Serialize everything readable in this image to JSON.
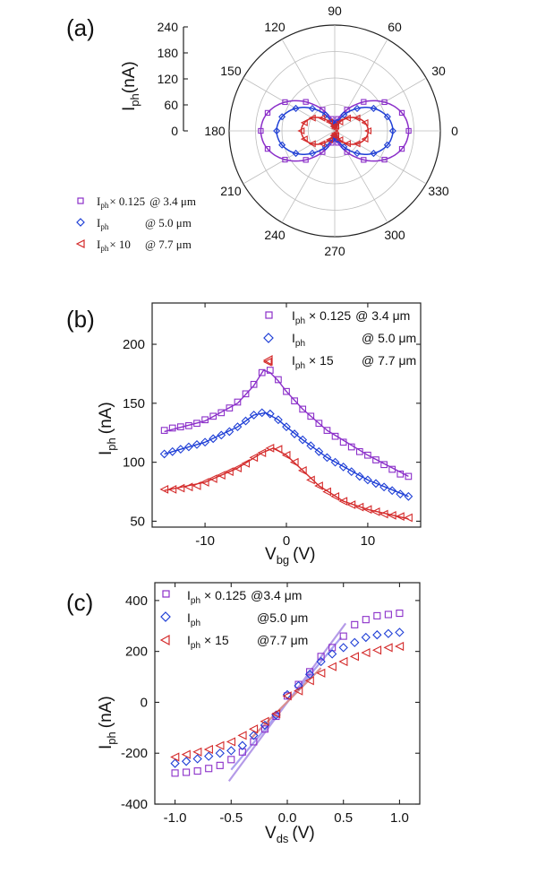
{
  "chart_data": [
    {
      "panel": "(a)",
      "type": "polar-scatter",
      "radial_axis": {
        "label_main": "I",
        "label_sub": "ph",
        "label_unit": "(nA)",
        "range": [
          0,
          240
        ],
        "ticks": [
          "0",
          "60",
          "120",
          "180",
          "240"
        ]
      },
      "angle_ticks": [
        "0",
        "30",
        "60",
        "90",
        "120",
        "150",
        "180",
        "210",
        "240",
        "270",
        "300",
        "330"
      ],
      "series": [
        {
          "legend_main": "I",
          "legend_sub": "ph",
          "legend_factor": "× 0.125",
          "legend_wl": "@ 3.4 μm",
          "color": "#8b2fc9",
          "marker": "square",
          "amp": 150,
          "base": 18
        },
        {
          "legend_main": "I",
          "legend_sub": "ph",
          "legend_factor": "",
          "legend_wl": "@ 5.0 μm",
          "color": "#1f3fd6",
          "marker": "diamond",
          "amp": 120,
          "base": 12
        },
        {
          "legend_main": "I",
          "legend_sub": "ph",
          "legend_factor": "× 10",
          "legend_wl": "@ 7.7 μm",
          "color": "#d42a2a",
          "marker": "triangle-left",
          "amp": 70,
          "base": 6
        }
      ]
    },
    {
      "panel": "(b)",
      "type": "scatter",
      "xlabel_main": "V",
      "xlabel_sub": "bg",
      "xlabel_unit": "(V)",
      "ylabel_main": "I",
      "ylabel_sub": "ph",
      "ylabel_unit": "(nA)",
      "xlim": [
        -16.5,
        16.5
      ],
      "ylim": [
        45,
        235
      ],
      "xticks": [
        -10,
        0,
        10
      ],
      "yticks": [
        50,
        100,
        150,
        200
      ],
      "series": [
        {
          "legend_main": "I",
          "legend_sub": "ph",
          "legend_factor": "× 0.125",
          "legend_wl": "@ 3.4 μm",
          "color": "#8b2fc9",
          "marker": "square",
          "x": [
            -15,
            -14,
            -13,
            -12,
            -11,
            -10,
            -9,
            -8,
            -7,
            -6,
            -5,
            -4,
            -3,
            -2,
            -1,
            0,
            1,
            2,
            3,
            4,
            5,
            6,
            7,
            8,
            9,
            10,
            11,
            12,
            13,
            14,
            15
          ],
          "y": [
            127,
            129,
            130,
            131,
            133,
            136,
            139,
            142,
            146,
            151,
            158,
            166,
            176,
            178,
            170,
            160,
            152,
            145,
            139,
            133,
            127,
            122,
            117,
            113,
            109,
            106,
            102,
            98,
            94,
            90,
            88
          ]
        },
        {
          "legend_main": "I",
          "legend_sub": "ph",
          "legend_factor": "",
          "legend_wl": "@ 5.0 μm",
          "color": "#1f3fd6",
          "marker": "diamond",
          "x": [
            -15,
            -14,
            -13,
            -12,
            -11,
            -10,
            -9,
            -8,
            -7,
            -6,
            -5,
            -4,
            -3,
            -2,
            -1,
            0,
            1,
            2,
            3,
            4,
            5,
            6,
            7,
            8,
            9,
            10,
            11,
            12,
            13,
            14,
            15
          ],
          "y": [
            107,
            109,
            111,
            113,
            115,
            117,
            120,
            123,
            126,
            130,
            135,
            140,
            142,
            141,
            136,
            130,
            124,
            119,
            114,
            109,
            104,
            100,
            96,
            92,
            88,
            85,
            82,
            79,
            76,
            73,
            71
          ]
        },
        {
          "legend_main": "I",
          "legend_sub": "ph",
          "legend_factor": "× 15",
          "legend_wl": "@ 7.7 μm",
          "color": "#d42a2a",
          "marker": "triangle-left",
          "x": [
            -15,
            -14,
            -13,
            -12,
            -11,
            -10,
            -9,
            -8,
            -7,
            -6,
            -5,
            -4,
            -3,
            -2,
            -1,
            0,
            1,
            2,
            3,
            4,
            5,
            6,
            7,
            8,
            9,
            10,
            11,
            12,
            13,
            14,
            15
          ],
          "y": [
            77,
            77,
            78,
            79,
            80,
            83,
            86,
            89,
            92,
            95,
            99,
            104,
            108,
            112,
            111,
            106,
            100,
            93,
            85,
            80,
            75,
            71,
            67,
            64,
            62,
            60,
            58,
            56,
            55,
            54,
            53
          ]
        }
      ],
      "fits": [
        {
          "color": "#8b2fc9",
          "x": [
            -15,
            -10,
            -6,
            -4,
            -2.8,
            -2,
            -1,
            0,
            2,
            5,
            10,
            15
          ],
          "y": [
            126,
            135,
            150,
            165,
            178,
            176,
            169,
            160,
            145,
            127,
            106,
            88
          ]
        },
        {
          "color": "#1f3fd6",
          "x": [
            -15,
            -10,
            -6,
            -4,
            -2.6,
            -1,
            0,
            2,
            5,
            10,
            15
          ],
          "y": [
            107,
            117,
            130,
            140,
            142,
            136,
            130,
            119,
            104,
            85,
            71
          ]
        },
        {
          "color": "#d42a2a",
          "x": [
            -15,
            -10,
            -6,
            -3,
            -1.6,
            0,
            2,
            4,
            7,
            10,
            15
          ],
          "y": [
            76,
            83,
            95,
            108,
            112,
            106,
            93,
            80,
            67,
            60,
            52
          ]
        }
      ],
      "outlier": {
        "x": -2.3,
        "y": 185,
        "color": "#d42a2a",
        "marker": "triangle-left"
      }
    },
    {
      "panel": "(c)",
      "type": "scatter",
      "xlabel_main": "V",
      "xlabel_sub": "ds",
      "xlabel_unit": "(V)",
      "ylabel_main": "I",
      "ylabel_sub": "ph",
      "ylabel_unit": "(nA)",
      "xlim": [
        -1.18,
        1.18
      ],
      "ylim": [
        -400,
        470
      ],
      "xticks": [
        "-1.0",
        "-0.5",
        "0.0",
        "0.5",
        "1.0"
      ],
      "yticks": [
        -400,
        -200,
        0,
        200,
        400
      ],
      "series": [
        {
          "legend_main": "I",
          "legend_sub": "ph",
          "legend_factor": "× 0.125",
          "legend_wl": "@3.4 μm",
          "color": "#8b2fc9",
          "marker": "square",
          "x": [
            -1.0,
            -0.9,
            -0.8,
            -0.7,
            -0.6,
            -0.5,
            -0.4,
            -0.3,
            -0.2,
            -0.1,
            0.0,
            0.1,
            0.2,
            0.3,
            0.4,
            0.5,
            0.6,
            0.7,
            0.8,
            0.9,
            1.0
          ],
          "y": [
            -278,
            -275,
            -270,
            -260,
            -248,
            -225,
            -195,
            -155,
            -105,
            -55,
            25,
            70,
            120,
            180,
            215,
            260,
            305,
            325,
            340,
            345,
            350
          ]
        },
        {
          "legend_main": "I",
          "legend_sub": "ph",
          "legend_factor": "",
          "legend_wl": "@5.0 μm",
          "color": "#1f3fd6",
          "marker": "diamond",
          "x": [
            -1.0,
            -0.9,
            -0.8,
            -0.7,
            -0.6,
            -0.5,
            -0.4,
            -0.3,
            -0.2,
            -0.1,
            0.0,
            0.1,
            0.2,
            0.3,
            0.4,
            0.5,
            0.6,
            0.7,
            0.8,
            0.9,
            1.0
          ],
          "y": [
            -240,
            -232,
            -222,
            -212,
            -200,
            -190,
            -170,
            -130,
            -90,
            -50,
            30,
            65,
            110,
            160,
            190,
            215,
            235,
            255,
            265,
            270,
            275
          ]
        },
        {
          "legend_main": "I",
          "legend_sub": "ph",
          "legend_factor": "× 15",
          "legend_wl": "@7.7 μm",
          "color": "#d42a2a",
          "marker": "triangle-left",
          "x": [
            -1.0,
            -0.9,
            -0.8,
            -0.7,
            -0.6,
            -0.5,
            -0.4,
            -0.3,
            -0.2,
            -0.1,
            0.0,
            0.1,
            0.2,
            0.3,
            0.4,
            0.5,
            0.6,
            0.7,
            0.8,
            0.9,
            1.0
          ],
          "y": [
            -215,
            -205,
            -195,
            -185,
            -170,
            -155,
            -130,
            -105,
            -75,
            -45,
            25,
            45,
            85,
            115,
            140,
            160,
            180,
            195,
            205,
            215,
            220
          ]
        }
      ],
      "fits": [
        {
          "color": "#b49ae8",
          "x": [
            -0.52,
            0.52
          ],
          "y": [
            -310,
            310
          ]
        },
        {
          "color": "#a9a0f0",
          "x": [
            -0.5,
            0.48
          ],
          "y": [
            -265,
            255
          ]
        },
        {
          "color": "#d99090",
          "x": [
            -0.32,
            0.3
          ],
          "y": [
            -140,
            135
          ]
        }
      ]
    }
  ]
}
